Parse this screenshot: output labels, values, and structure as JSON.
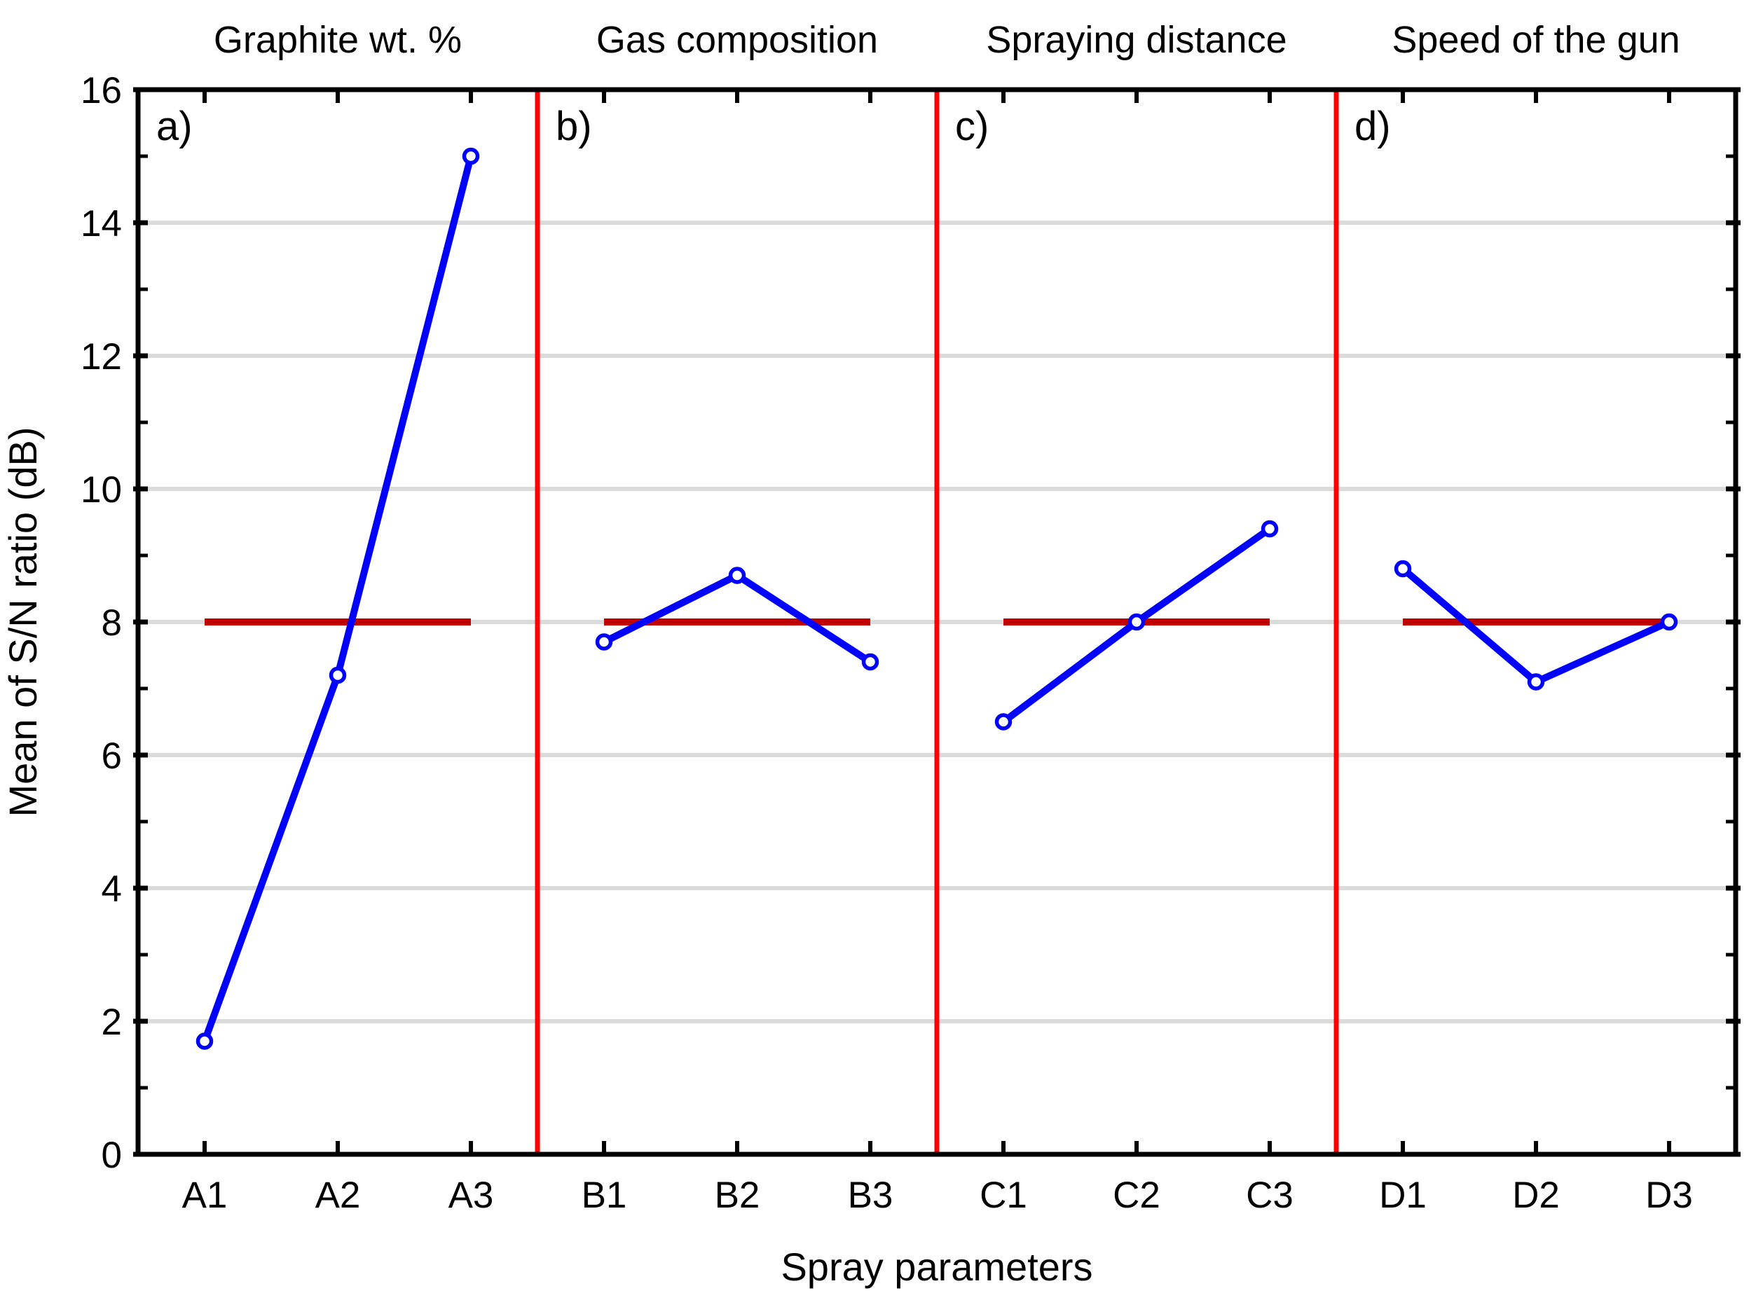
{
  "figure": {
    "xlabel": "Spray parameters",
    "ylabel": "Mean of S/N ratio (dB)"
  },
  "chart_data": {
    "type": "line",
    "title": "",
    "xlabel": "Spray parameters",
    "ylabel": "Mean of S/N ratio (dB)",
    "ylim": [
      0,
      16
    ],
    "yticks_major": [
      0,
      2,
      4,
      6,
      8,
      10,
      12,
      14,
      16
    ],
    "yticks_minor": [
      1,
      3,
      5,
      7,
      9,
      11,
      13,
      15
    ],
    "grid": "horizontal-major",
    "legend": null,
    "grand_mean": 8.0,
    "panels": [
      {
        "letter": "a)",
        "title": "Graphite wt. %",
        "categories": [
          "A1",
          "A2",
          "A3"
        ],
        "values": [
          1.7,
          7.2,
          15.0
        ]
      },
      {
        "letter": "b)",
        "title": "Gas composition",
        "categories": [
          "B1",
          "B2",
          "B3"
        ],
        "values": [
          7.7,
          8.7,
          7.4
        ]
      },
      {
        "letter": "c)",
        "title": "Spraying distance",
        "categories": [
          "C1",
          "C2",
          "C3"
        ],
        "values": [
          6.5,
          8.0,
          9.4
        ]
      },
      {
        "letter": "d)",
        "title": "Speed of the gun",
        "categories": [
          "D1",
          "D2",
          "D3"
        ],
        "values": [
          8.8,
          7.1,
          8.0
        ]
      }
    ],
    "colors": {
      "series": "#0000FF",
      "marker_fill": "#FFFFFF",
      "mean_line": "#C00000",
      "divider": "#FF0000",
      "gridline": "#DBDBDB",
      "frame": "#000000",
      "background": "#FFFFFF",
      "text": "#000000"
    }
  }
}
